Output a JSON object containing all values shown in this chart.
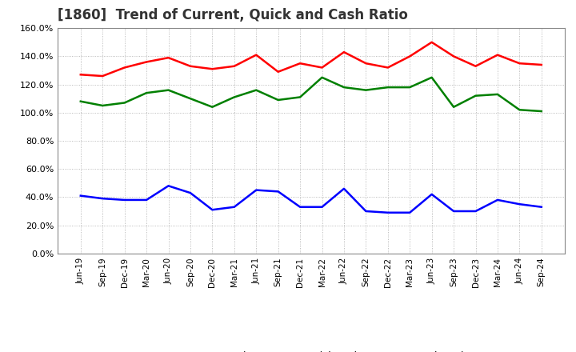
{
  "title": "[1860]  Trend of Current, Quick and Cash Ratio",
  "x_labels": [
    "Jun-19",
    "Sep-19",
    "Dec-19",
    "Mar-20",
    "Jun-20",
    "Sep-20",
    "Dec-20",
    "Mar-21",
    "Jun-21",
    "Sep-21",
    "Dec-21",
    "Mar-22",
    "Jun-22",
    "Sep-22",
    "Dec-22",
    "Mar-23",
    "Jun-23",
    "Sep-23",
    "Dec-23",
    "Mar-24",
    "Jun-24",
    "Sep-24"
  ],
  "current_ratio": [
    127,
    126,
    132,
    136,
    139,
    133,
    131,
    133,
    141,
    129,
    135,
    132,
    143,
    135,
    132,
    140,
    150,
    140,
    133,
    141,
    135,
    134
  ],
  "quick_ratio": [
    108,
    105,
    107,
    114,
    116,
    110,
    104,
    111,
    116,
    109,
    111,
    125,
    118,
    116,
    118,
    118,
    125,
    104,
    112,
    113,
    102,
    101
  ],
  "cash_ratio": [
    41,
    39,
    38,
    38,
    48,
    43,
    31,
    33,
    45,
    44,
    33,
    33,
    46,
    30,
    29,
    29,
    42,
    30,
    30,
    38,
    35,
    33
  ],
  "current_color": "#ff0000",
  "quick_color": "#008000",
  "cash_color": "#0000ff",
  "ylim": [
    0,
    160
  ],
  "yticks": [
    0,
    20,
    40,
    60,
    80,
    100,
    120,
    140,
    160
  ],
  "background_color": "#ffffff",
  "grid_color": "#aaaaaa",
  "title_fontsize": 12,
  "line_width": 1.8
}
